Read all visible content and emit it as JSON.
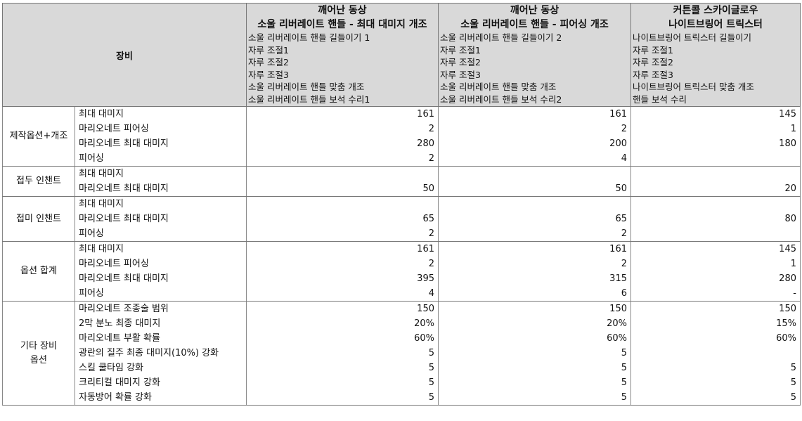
{
  "header": {
    "label": "장비",
    "columns": [
      {
        "title": [
          "깨어난 동상",
          "소울 리버레이트 핸들 - 최대 대미지 개조"
        ],
        "items": [
          "소울 리버레이트 핸들 길들이기 1",
          "자루 조절1",
          "자루 조절2",
          "자루 조절3",
          "소울 리버레이트 핸들 맞춤 개조",
          "소울 리버레이트 핸들 보석 수리1"
        ]
      },
      {
        "title": [
          "깨어난 동상",
          "소울 리버레이트 핸들 - 피어싱 개조"
        ],
        "items": [
          "소울 리버레이트 핸들 길들이기 2",
          "자루 조절1",
          "자루 조절2",
          "자루 조절3",
          "소울 리버레이트 핸들 맞춤 개조",
          "소울 리버레이트 핸들 보석 수리2"
        ]
      },
      {
        "title": [
          "커튼콜 스카이글로우",
          "나이트브링어 트릭스터"
        ],
        "items": [
          "나이트브링어 트릭스터 길들이기",
          "자루 조절1",
          "자루 조절2",
          "자루 조절3",
          "나이트브링어 트릭스터 맞춤 개조",
          "핸들 보석 수리"
        ]
      }
    ]
  },
  "groups": [
    {
      "name": [
        "제작옵션+개조"
      ],
      "rows": [
        {
          "label": "최대 대미지",
          "values": [
            "161",
            "161",
            "145"
          ]
        },
        {
          "label": "마리오네트 피어싱",
          "values": [
            "2",
            "2",
            "1"
          ]
        },
        {
          "label": "마리오네트 최대 대미지",
          "values": [
            "280",
            "200",
            "180"
          ]
        },
        {
          "label": "피어싱",
          "values": [
            "2",
            "4",
            null
          ]
        }
      ]
    },
    {
      "name": [
        "접두 인챈트"
      ],
      "rows": [
        {
          "label": "최대 대미지",
          "values": [
            null,
            null,
            null
          ]
        },
        {
          "label": "마리오네트 최대 대미지",
          "values": [
            "50",
            "50",
            "20"
          ]
        }
      ]
    },
    {
      "name": [
        "접미 인챈트"
      ],
      "rows": [
        {
          "label": "최대 대미지",
          "values": [
            null,
            null,
            null
          ]
        },
        {
          "label": "마리오네트 최대 대미지",
          "values": [
            "65",
            "65",
            "80"
          ]
        },
        {
          "label": "피어싱",
          "values": [
            "2",
            "2",
            null
          ]
        }
      ]
    },
    {
      "name": [
        "옵션 합계"
      ],
      "rows": [
        {
          "label": "최대 대미지",
          "values": [
            "161",
            "161",
            "145"
          ]
        },
        {
          "label": "마리오네트 피어싱",
          "values": [
            "2",
            "2",
            "1"
          ]
        },
        {
          "label": "마리오네트 최대 대미지",
          "values": [
            "395",
            "315",
            "280"
          ]
        },
        {
          "label": "피어싱",
          "values": [
            "4",
            "6",
            "-"
          ]
        }
      ]
    },
    {
      "name": [
        "기타 장비",
        "옵션"
      ],
      "rows": [
        {
          "label": "마리오네트 조종술 범위",
          "values": [
            "150",
            "150",
            "150"
          ]
        },
        {
          "label": "2막 분노 최종 대미지",
          "values": [
            "20%",
            "20%",
            "15%"
          ]
        },
        {
          "label": "마리오네트 부활 확률",
          "values": [
            "60%",
            "60%",
            "60%"
          ]
        },
        {
          "label": "광란의 질주 최종 대미지(10%) 강화",
          "values": [
            "5",
            "5",
            null
          ]
        },
        {
          "label": "스킬 쿨타임 강화",
          "values": [
            "5",
            "5",
            "5"
          ]
        },
        {
          "label": "크리티컬 대미지 강화",
          "values": [
            "5",
            "5",
            "5"
          ]
        },
        {
          "label": "자동방어 확률 강화",
          "values": [
            "5",
            "5",
            "5"
          ]
        }
      ]
    }
  ]
}
